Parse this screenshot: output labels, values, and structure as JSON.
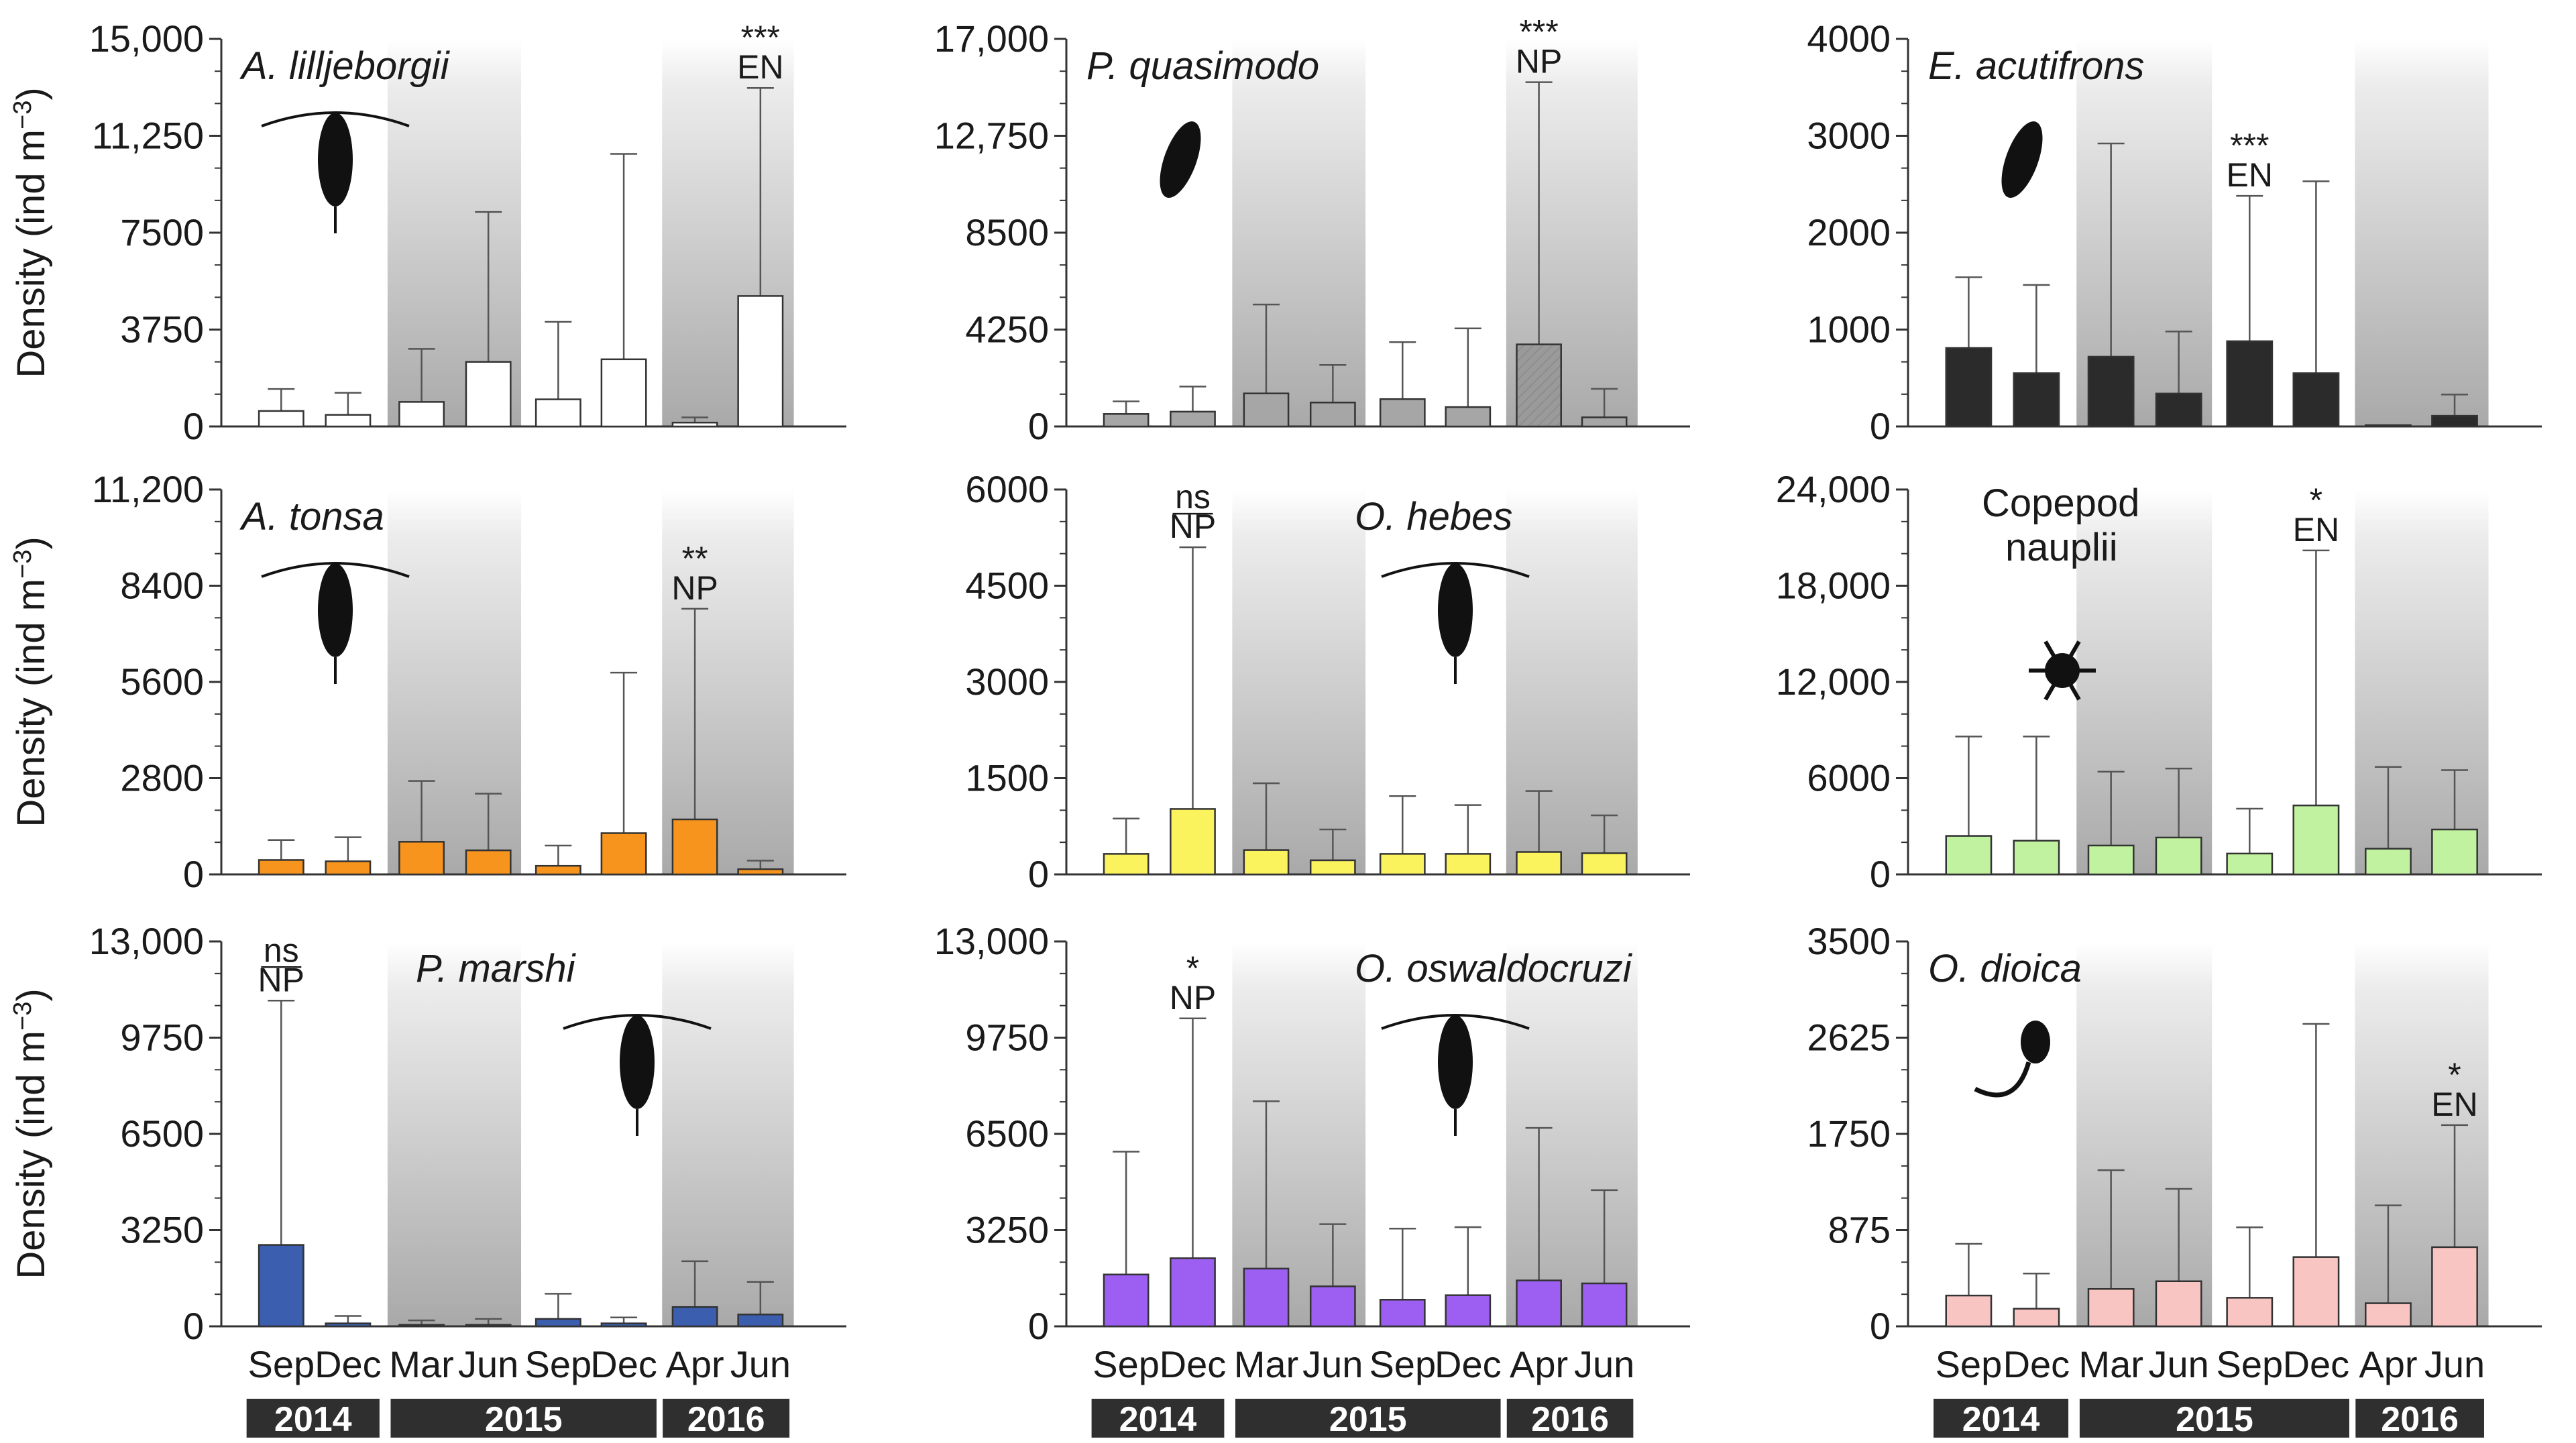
{
  "chart_data": [
    {
      "type": "bar",
      "title": "A. lilljeborgii",
      "italic": true,
      "categories": [
        "Sep",
        "Dec",
        "Mar",
        "Jun",
        "Sep",
        "Dec",
        "Apr",
        "Jun"
      ],
      "years": [
        "2014",
        "2015",
        "2016"
      ],
      "ylim": [
        0,
        15000
      ],
      "ticks": [
        "0",
        "3750",
        "7500",
        "11,250",
        "15,000"
      ],
      "ylabel": "Density (ind m",
      "ylabel_sup": "−3",
      "ylabel_end": ")",
      "values": [
        600,
        450,
        950,
        2500,
        1050,
        2600,
        150,
        5050
      ],
      "errors": [
        1450,
        1300,
        3000,
        8300,
        4050,
        10550,
        350,
        13100
      ],
      "color": "#ffffff",
      "annotation": {
        "index": 7,
        "lines": [
          "***",
          "EN"
        ]
      }
    },
    {
      "type": "bar",
      "title": "P. quasimodo",
      "italic": true,
      "categories": [
        "Sep",
        "Dec",
        "Mar",
        "Jun",
        "Sep",
        "Dec",
        "Apr",
        "Jun"
      ],
      "years": [
        "2014",
        "2015",
        "2016"
      ],
      "ylim": [
        0,
        17000
      ],
      "ticks": [
        "0",
        "4250",
        "8500",
        "12,750",
        "17,000"
      ],
      "ylabel": "",
      "values": [
        550,
        650,
        1450,
        1050,
        1200,
        850,
        3600,
        400
      ],
      "errors": [
        1100,
        1750,
        5350,
        2700,
        3700,
        4300,
        15100,
        1650
      ],
      "color": "#a6a6a6",
      "annotation": {
        "index": 6,
        "lines": [
          "***",
          "NP"
        ]
      }
    },
    {
      "type": "bar",
      "title": "E. acutifrons",
      "italic": true,
      "categories": [
        "Sep",
        "Dec",
        "Mar",
        "Jun",
        "Sep",
        "Dec",
        "Apr",
        "Jun"
      ],
      "years": [
        "2014",
        "2015",
        "2016"
      ],
      "ylim": [
        0,
        4000
      ],
      "ticks": [
        "0",
        "1000",
        "2000",
        "3000",
        "4000"
      ],
      "ylabel": "",
      "values": [
        810,
        550,
        720,
        340,
        880,
        550,
        0,
        110
      ],
      "errors": [
        1540,
        1460,
        2920,
        980,
        2380,
        2530,
        0,
        330
      ],
      "color": "#2b2b2b",
      "annotation": {
        "index": 4,
        "lines": [
          "***",
          "EN"
        ]
      }
    },
    {
      "type": "bar",
      "title": "A. tonsa",
      "italic": true,
      "categories": [
        "Sep",
        "Dec",
        "Mar",
        "Jun",
        "Sep",
        "Dec",
        "Apr",
        "Jun"
      ],
      "years": [
        "2014",
        "2015",
        "2016"
      ],
      "ylim": [
        0,
        11200
      ],
      "ticks": [
        "0",
        "2800",
        "5600",
        "8400",
        "11,200"
      ],
      "ylabel": "Density (ind m",
      "ylabel_sup": "−3",
      "ylabel_end": ")",
      "values": [
        420,
        380,
        950,
        700,
        250,
        1200,
        1600,
        150
      ],
      "errors": [
        1000,
        1080,
        2720,
        2350,
        840,
        5870,
        7730,
        400
      ],
      "color": "#f6941d",
      "annotation": {
        "index": 6,
        "lines": [
          "**",
          "NP"
        ]
      }
    },
    {
      "type": "bar",
      "title": "O. hebes",
      "italic": true,
      "categories": [
        "Sep",
        "Dec",
        "Mar",
        "Jun",
        "Sep",
        "Dec",
        "Apr",
        "Jun"
      ],
      "years": [
        "2014",
        "2015",
        "2016"
      ],
      "ylim": [
        0,
        6000
      ],
      "ticks": [
        "0",
        "1500",
        "3000",
        "4500",
        "6000"
      ],
      "ylabel": "",
      "values": [
        320,
        1020,
        380,
        220,
        320,
        320,
        350,
        330
      ],
      "errors": [
        870,
        5100,
        1420,
        700,
        1220,
        1080,
        1300,
        920
      ],
      "color": "#fbf35e",
      "annotation": {
        "index": 1,
        "lines": [
          "ns",
          "NP"
        ],
        "underline": true
      }
    },
    {
      "type": "bar",
      "title": "Copepod nauplii",
      "title_lines": [
        "Copepod",
        "nauplii"
      ],
      "italic": false,
      "categories": [
        "Sep",
        "Dec",
        "Mar",
        "Jun",
        "Sep",
        "Dec",
        "Apr",
        "Jun"
      ],
      "years": [
        "2014",
        "2015",
        "2016"
      ],
      "ylim": [
        0,
        24000
      ],
      "ticks": [
        "0",
        "6000",
        "12,000",
        "18,000",
        "24,000"
      ],
      "ylabel": "",
      "values": [
        2400,
        2100,
        1800,
        2300,
        1300,
        4300,
        1600,
        2800
      ],
      "errors": [
        8600,
        8600,
        6400,
        6600,
        4100,
        20200,
        6700,
        6500
      ],
      "color": "#c0f2a0",
      "annotation": {
        "index": 5,
        "lines": [
          "*",
          "EN"
        ]
      }
    },
    {
      "type": "bar",
      "title": "P. marshi",
      "italic": true,
      "categories": [
        "Sep",
        "Dec",
        "Mar",
        "Jun",
        "Sep",
        "Dec",
        "Apr",
        "Jun"
      ],
      "years": [
        "2014",
        "2015",
        "2016"
      ],
      "ylim": [
        0,
        13000
      ],
      "ticks": [
        "0",
        "3250",
        "6500",
        "9750",
        "13,000"
      ],
      "ylabel": "Density (ind m",
      "ylabel_sup": "−3",
      "ylabel_end": ")",
      "values": [
        2750,
        100,
        50,
        50,
        250,
        100,
        650,
        400
      ],
      "errors": [
        11000,
        350,
        200,
        250,
        1100,
        300,
        2200,
        1500
      ],
      "color": "#3b5fae",
      "annotation": {
        "index": 0,
        "lines": [
          "ns",
          "NP"
        ],
        "underline": true
      }
    },
    {
      "type": "bar",
      "title": "O. oswaldocruzi",
      "italic": true,
      "categories": [
        "Sep",
        "Dec",
        "Mar",
        "Jun",
        "Sep",
        "Dec",
        "Apr",
        "Jun"
      ],
      "years": [
        "2014",
        "2015",
        "2016"
      ],
      "ylim": [
        0,
        13000
      ],
      "ticks": [
        "0",
        "3250",
        "6500",
        "9750",
        "13,000"
      ],
      "ylabel": "",
      "values": [
        1750,
        2300,
        1950,
        1350,
        900,
        1050,
        1550,
        1450
      ],
      "errors": [
        5900,
        10400,
        7600,
        3450,
        3300,
        3350,
        6700,
        4600
      ],
      "color": "#9c5ff2",
      "annotation": {
        "index": 1,
        "lines": [
          "*",
          "NP"
        ]
      }
    },
    {
      "type": "bar",
      "title": "O. dioica",
      "italic": true,
      "categories": [
        "Sep",
        "Dec",
        "Mar",
        "Jun",
        "Sep",
        "Dec",
        "Apr",
        "Jun"
      ],
      "years": [
        "2014",
        "2015",
        "2016"
      ],
      "ylim": [
        0,
        3500
      ],
      "ticks": [
        "0",
        "875",
        "1750",
        "2625",
        "3500"
      ],
      "ylabel": "",
      "values": [
        280,
        160,
        340,
        410,
        260,
        630,
        210,
        720
      ],
      "errors": [
        750,
        480,
        1420,
        1250,
        900,
        2750,
        1100,
        1830
      ],
      "color": "#f9c5c3",
      "annotation": {
        "index": 7,
        "lines": [
          "*",
          "EN"
        ]
      }
    }
  ]
}
